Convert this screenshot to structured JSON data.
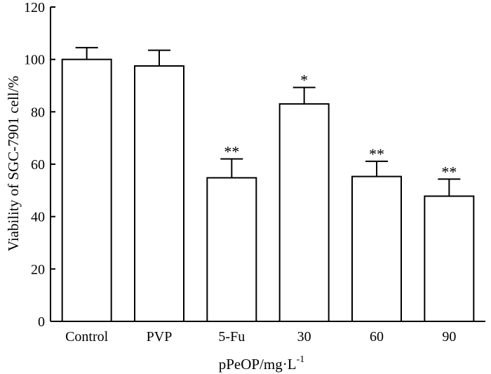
{
  "chart_data": {
    "type": "bar",
    "categories": [
      "Control",
      "PVP",
      "5-Fu",
      "30",
      "60",
      "90"
    ],
    "values": [
      100,
      97.5,
      54.8,
      83.0,
      55.3,
      47.8
    ],
    "errors": [
      4.5,
      6.0,
      7.2,
      6.3,
      5.8,
      6.5
    ],
    "significance": [
      "",
      "",
      "**",
      "*",
      "**",
      "**"
    ],
    "xlabel": "pPeOP/mg·L",
    "xlabel_superscript": "-1",
    "ylabel": "Viability of SGC-7901 cell/%",
    "ylim": [
      0,
      120
    ],
    "yticks": [
      0,
      20,
      40,
      60,
      80,
      100,
      120
    ],
    "grid": false,
    "legend": "none",
    "colors": {
      "bar_fill": "#ffffff",
      "stroke": "#000000"
    }
  }
}
